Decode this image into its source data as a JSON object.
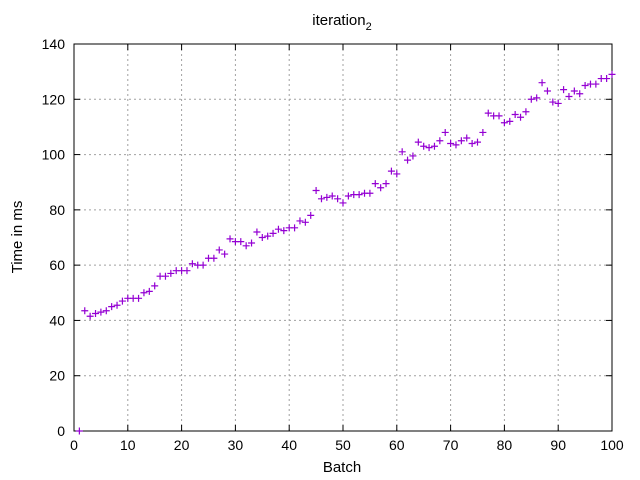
{
  "chart_data": {
    "type": "scatter",
    "title": "iteration",
    "title_subscript": "2",
    "xlabel": "Batch",
    "ylabel": "Time in ms",
    "xlim": [
      0,
      100
    ],
    "ylim": [
      0,
      140
    ],
    "xticks": [
      0,
      10,
      20,
      30,
      40,
      50,
      60,
      70,
      80,
      90,
      100
    ],
    "yticks": [
      0,
      20,
      40,
      60,
      80,
      100,
      120,
      140
    ],
    "grid": true,
    "marker": "plus",
    "color": "#9400d3",
    "series": [
      {
        "x": [
          1,
          2,
          3,
          4,
          5,
          6,
          7,
          8,
          9,
          10,
          11,
          12,
          13,
          14,
          15,
          16,
          17,
          18,
          19,
          20,
          21,
          22,
          23,
          24,
          25,
          26,
          27,
          28,
          29,
          30,
          31,
          32,
          33,
          34,
          35,
          36,
          37,
          38,
          39,
          40,
          41,
          42,
          43,
          44,
          45,
          46,
          47,
          48,
          49,
          50,
          51,
          52,
          53,
          54,
          55,
          56,
          57,
          58,
          59,
          60,
          61,
          62,
          63,
          64,
          65,
          66,
          67,
          68,
          69,
          70,
          71,
          72,
          73,
          74,
          75,
          76,
          77,
          78,
          79,
          80,
          81,
          82,
          83,
          84,
          85,
          86,
          87,
          88,
          89,
          90,
          91,
          92,
          93,
          94,
          95,
          96,
          97,
          98,
          99,
          100
        ],
        "y": [
          0,
          43.5,
          41.5,
          42.5,
          43,
          43.5,
          45,
          45.5,
          47,
          48,
          48,
          48,
          50,
          50.5,
          52.5,
          56,
          56,
          57,
          58,
          58,
          58,
          60.5,
          60,
          60,
          62.5,
          62.5,
          65.5,
          64,
          69.5,
          68.5,
          68.5,
          67,
          68,
          72,
          70,
          70.5,
          71.5,
          73,
          72.5,
          73.5,
          73.5,
          76,
          75.5,
          78,
          87,
          84,
          84.5,
          85,
          84,
          82.5,
          85,
          85.5,
          85.5,
          86,
          86,
          89.5,
          88,
          89.5,
          94,
          93,
          101,
          98,
          99.5,
          104.5,
          103,
          102.5,
          103,
          105,
          108,
          104,
          103.5,
          105,
          106,
          104,
          104.5,
          108,
          115,
          114,
          114,
          111.5,
          112,
          114.5,
          113.5,
          115.5,
          120,
          120.5,
          126,
          123,
          119,
          118.5,
          123.5,
          121,
          123,
          122,
          125,
          125.5,
          125.5,
          127.5,
          127.5,
          129
        ]
      }
    ]
  }
}
